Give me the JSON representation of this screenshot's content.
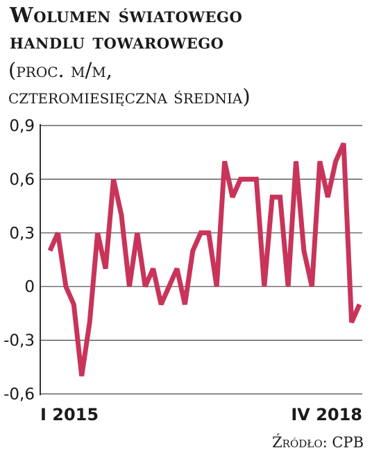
{
  "chart_data": {
    "type": "line",
    "title_line1": "Wolumen światowego",
    "title_line2": "handlu towarowego",
    "subtitle_line1": "(proc. m/m,",
    "subtitle_line2": "czteromiesięczna średnia)",
    "source": "Źródło: CPB",
    "xlabel_start": "I 2015",
    "xlabel_end": "IV 2018",
    "y_ticks": [
      0.9,
      0.6,
      0.3,
      0,
      -0.3,
      -0.6
    ],
    "y_tick_labels": [
      "0,9",
      "0,6",
      "0,3",
      "0",
      "-0,3",
      "-0,6"
    ],
    "ylim": [
      -0.6,
      0.9
    ],
    "grid": true,
    "line_color": "#c8345a",
    "series": [
      {
        "values": [
          0.2,
          0.3,
          0.0,
          -0.1,
          -0.5,
          -0.2,
          0.3,
          0.1,
          0.6,
          0.4,
          0.0,
          0.3,
          0.0,
          0.1,
          -0.1,
          0.0,
          0.1,
          -0.1,
          0.2,
          0.3,
          0.3,
          0.0,
          0.7,
          0.5,
          0.6,
          0.6,
          0.6,
          0.0,
          0.5,
          0.5,
          0.0,
          0.7,
          0.2,
          0.0,
          0.7,
          0.5,
          0.7,
          0.8,
          -0.2,
          -0.1
        ]
      }
    ]
  }
}
